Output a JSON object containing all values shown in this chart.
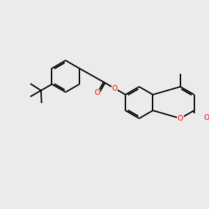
{
  "background_color": "#ebebeb",
  "bond_color": "#000000",
  "oxygen_color": "#ff0000",
  "line_width": 1.4,
  "figsize": [
    3.0,
    3.0
  ],
  "dpi": 100,
  "xlim": [
    0,
    10
  ],
  "ylim": [
    0,
    10
  ]
}
